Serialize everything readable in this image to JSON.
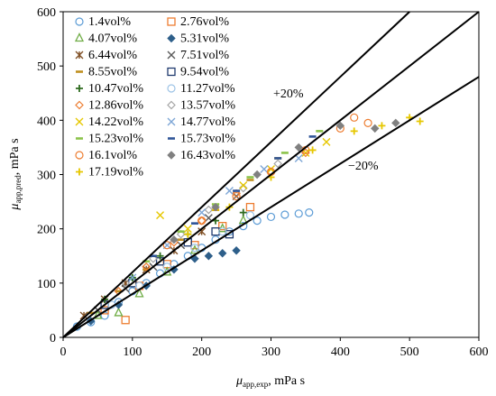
{
  "chart_data": {
    "type": "scatter",
    "xlabel_sym": "μ",
    "xlabel_sub": "app,exp",
    "xlabel_unit": ", mPa s",
    "ylabel_sym": "μ",
    "ylabel_sub": "app,pred",
    "ylabel_unit": ", mPa s",
    "xlim": [
      0,
      600
    ],
    "ylim": [
      0,
      600
    ],
    "xticks": [
      0,
      100,
      200,
      300,
      400,
      500,
      600
    ],
    "yticks": [
      0,
      100,
      200,
      300,
      400,
      500,
      600
    ],
    "reference_lines": [
      {
        "name": "parity",
        "slope": 1.0,
        "label": ""
      },
      {
        "name": "upper",
        "slope": 1.2,
        "label": "+20%"
      },
      {
        "name": "lower",
        "slope": 0.8,
        "label": "−20%"
      }
    ],
    "legend_position": "top-left",
    "series": [
      {
        "name": "1.4vol%",
        "marker": "circle-open",
        "color": "#5b9bd5",
        "points": [
          [
            20,
            20
          ],
          [
            40,
            28
          ],
          [
            60,
            40
          ],
          [
            80,
            65
          ],
          [
            100,
            85
          ],
          [
            120,
            100
          ],
          [
            140,
            118
          ],
          [
            160,
            135
          ],
          [
            180,
            150
          ],
          [
            200,
            165
          ],
          [
            220,
            180
          ],
          [
            240,
            195
          ],
          [
            260,
            205
          ],
          [
            280,
            215
          ],
          [
            300,
            222
          ],
          [
            320,
            226
          ],
          [
            340,
            228
          ],
          [
            355,
            230
          ]
        ]
      },
      {
        "name": "2.76vol%",
        "marker": "square-open",
        "color": "#ed7d31",
        "points": [
          [
            60,
            50
          ],
          [
            90,
            32
          ],
          [
            110,
            95
          ],
          [
            150,
            135
          ],
          [
            190,
            170
          ],
          [
            230,
            205
          ],
          [
            270,
            240
          ]
        ]
      },
      {
        "name": "4.07vol%",
        "marker": "triangle-open",
        "color": "#70ad47",
        "points": [
          [
            50,
            40
          ],
          [
            80,
            45
          ],
          [
            110,
            80
          ],
          [
            150,
            120
          ],
          [
            190,
            160
          ],
          [
            230,
            200
          ],
          [
            260,
            215
          ]
        ]
      },
      {
        "name": "5.31vol%",
        "marker": "diamond",
        "color": "#2e5f8a",
        "points": [
          [
            40,
            30
          ],
          [
            80,
            60
          ],
          [
            120,
            95
          ],
          [
            160,
            125
          ],
          [
            190,
            145
          ],
          [
            210,
            150
          ],
          [
            230,
            155
          ],
          [
            250,
            160
          ]
        ]
      },
      {
        "name": "6.44vol%",
        "marker": "star",
        "color": "#7f4f24",
        "points": [
          [
            30,
            40
          ],
          [
            60,
            70
          ],
          [
            90,
            100
          ],
          [
            120,
            125
          ],
          [
            160,
            160
          ],
          [
            200,
            195
          ]
        ]
      },
      {
        "name": "7.51vol%",
        "marker": "x",
        "color": "#595959",
        "points": [
          [
            50,
            50
          ],
          [
            90,
            90
          ],
          [
            130,
            130
          ],
          [
            170,
            170
          ],
          [
            210,
            220
          ],
          [
            250,
            260
          ]
        ]
      },
      {
        "name": "8.55vol%",
        "marker": "dash",
        "color": "#c09020",
        "points": [
          [
            40,
            45
          ],
          [
            80,
            85
          ],
          [
            120,
            125
          ],
          [
            170,
            180
          ],
          [
            220,
            235
          ],
          [
            270,
            290
          ],
          [
            310,
            330
          ]
        ]
      },
      {
        "name": "9.54vol%",
        "marker": "square-open",
        "color": "#1f3a6e",
        "points": [
          [
            60,
            60
          ],
          [
            100,
            100
          ],
          [
            140,
            140
          ],
          [
            180,
            175
          ],
          [
            220,
            195
          ],
          [
            240,
            190
          ]
        ]
      },
      {
        "name": "10.47vol%",
        "marker": "plus",
        "color": "#2e6b1f",
        "points": [
          [
            60,
            70
          ],
          [
            100,
            110
          ],
          [
            140,
            150
          ],
          [
            180,
            190
          ],
          [
            220,
            215
          ],
          [
            260,
            230
          ]
        ]
      },
      {
        "name": "11.27vol%",
        "marker": "circle-open",
        "color": "#9dc3e6",
        "points": [
          [
            70,
            60
          ],
          [
            110,
            95
          ],
          [
            150,
            130
          ],
          [
            190,
            165
          ],
          [
            230,
            195
          ],
          [
            270,
            225
          ]
        ]
      },
      {
        "name": "12.86vol%",
        "marker": "diamond-open",
        "color": "#ed7d31",
        "points": [
          [
            80,
            85
          ],
          [
            120,
            130
          ],
          [
            160,
            175
          ],
          [
            200,
            215
          ],
          [
            250,
            265
          ],
          [
            300,
            305
          ],
          [
            350,
            340
          ]
        ]
      },
      {
        "name": "13.57vol%",
        "marker": "diamond-open",
        "color": "#a5a5a5",
        "points": [
          [
            90,
            100
          ],
          [
            130,
            145
          ],
          [
            170,
            190
          ],
          [
            210,
            235
          ],
          [
            260,
            275
          ],
          [
            310,
            320
          ]
        ]
      },
      {
        "name": "14.22vol%",
        "marker": "x",
        "color": "#e6c700",
        "points": [
          [
            140,
            225
          ],
          [
            180,
            200
          ],
          [
            220,
            240
          ],
          [
            260,
            280
          ],
          [
            300,
            310
          ],
          [
            350,
            340
          ],
          [
            380,
            360
          ]
        ]
      },
      {
        "name": "14.77vol%",
        "marker": "x",
        "color": "#7ea6d6",
        "points": [
          [
            100,
            110
          ],
          [
            150,
            170
          ],
          [
            200,
            230
          ],
          [
            240,
            270
          ],
          [
            290,
            310
          ],
          [
            340,
            330
          ]
        ]
      },
      {
        "name": "15.23vol%",
        "marker": "dash",
        "color": "#8bc34a",
        "points": [
          [
            120,
            140
          ],
          [
            170,
            195
          ],
          [
            220,
            245
          ],
          [
            270,
            295
          ],
          [
            320,
            340
          ],
          [
            370,
            380
          ]
        ]
      },
      {
        "name": "15.73vol%",
        "marker": "dash",
        "color": "#2f5597",
        "points": [
          [
            130,
            150
          ],
          [
            190,
            210
          ],
          [
            250,
            270
          ],
          [
            310,
            330
          ],
          [
            360,
            370
          ]
        ]
      },
      {
        "name": "16.1vol%",
        "marker": "circle-open",
        "color": "#ed7d31",
        "points": [
          [
            150,
            170
          ],
          [
            200,
            215
          ],
          [
            250,
            260
          ],
          [
            300,
            305
          ],
          [
            350,
            345
          ],
          [
            400,
            385
          ],
          [
            420,
            405
          ],
          [
            440,
            395
          ]
        ]
      },
      {
        "name": "16.43vol%",
        "marker": "diamond",
        "color": "#808080",
        "points": [
          [
            160,
            180
          ],
          [
            220,
            240
          ],
          [
            280,
            300
          ],
          [
            340,
            350
          ],
          [
            400,
            390
          ],
          [
            450,
            385
          ],
          [
            480,
            395
          ]
        ]
      },
      {
        "name": "17.19vol%",
        "marker": "plus",
        "color": "#e6c700",
        "points": [
          [
            180,
            190
          ],
          [
            240,
            240
          ],
          [
            300,
            295
          ],
          [
            360,
            345
          ],
          [
            420,
            380
          ],
          [
            460,
            390
          ],
          [
            500,
            405
          ],
          [
            515,
            398
          ]
        ]
      }
    ]
  }
}
